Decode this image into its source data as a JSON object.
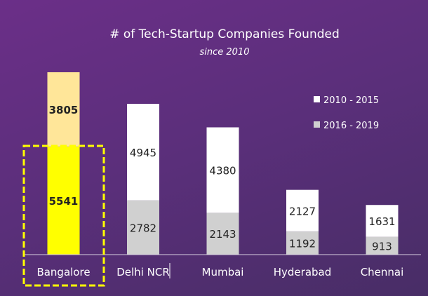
{
  "chart_data": {
    "type": "bar",
    "stacked": true,
    "title": "# of Tech-Startup Companies Founded",
    "subtitle": "since 2010",
    "categories": [
      "Bangalore",
      "Delhi NCR",
      "Mumbai",
      "Hyderabad",
      "Chennai"
    ],
    "series": [
      {
        "name": "2016 - 2019",
        "values": [
          5541,
          2782,
          2143,
          1192,
          913
        ],
        "color": "#d0d0d0"
      },
      {
        "name": "2010 - 2015",
        "values": [
          3805,
          4945,
          4380,
          2127,
          1631
        ],
        "color": "#ffffff"
      }
    ],
    "highlight": {
      "category": "Bangalore",
      "bottom_color": "#ffff00",
      "top_color": "#ffe699",
      "box_color": "#ffff00",
      "box_style": "dashed"
    },
    "legend": {
      "placement": "top-right",
      "order": [
        "2010 - 2015",
        "2016 - 2019"
      ]
    },
    "ylim": [
      0,
      9346
    ],
    "grid": false,
    "data_labels": true,
    "background": "#5a2f7a"
  }
}
